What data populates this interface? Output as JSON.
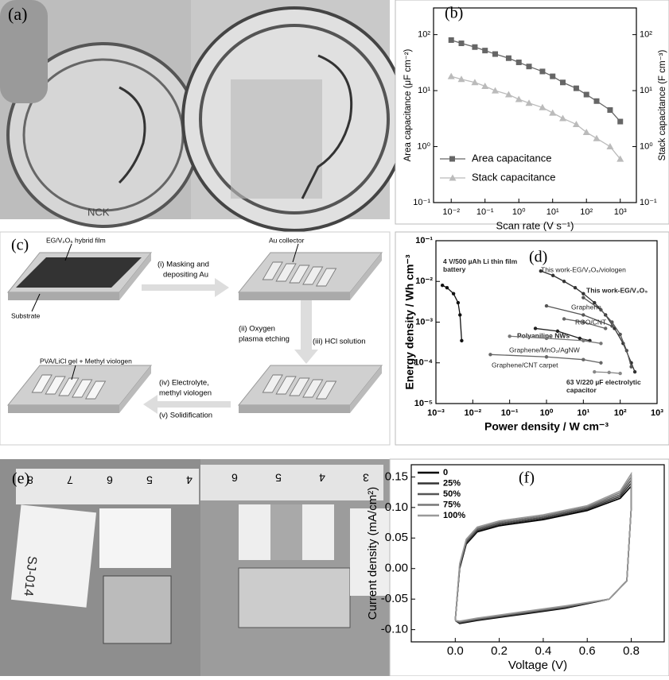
{
  "figure": {
    "panel_a": {
      "label": "(a)",
      "photo_text": "NCK"
    },
    "diagram_c": {
      "label": "(c)",
      "film": "EG/V₂O₅ hybrid film",
      "substrate": "Substrate",
      "collector": "Au collector",
      "step1": [
        "(i) Masking and",
        "depositing Au"
      ],
      "step2": [
        "(ii) Oxygen",
        "plasma etching"
      ],
      "step3": "(iii) HCl solution",
      "gel": "PVA/LiCl gel + Methyl viologen",
      "step4": [
        "(iv) Electrolyte,",
        "methyl viologen"
      ],
      "step5": "(v) Solidification"
    },
    "panel_e": {
      "label": "(e)",
      "ruler_left": [
        "8",
        "7",
        "6",
        "5",
        "4"
      ],
      "ruler_right": [
        "6",
        "5",
        "4",
        "3"
      ],
      "sample": "SJ-014"
    }
  },
  "chart_data": [
    {
      "type": "line",
      "panel_label": "(b)",
      "xlabel": "Scan rate (V s⁻¹)",
      "ylabel": "Area capacitance (μF cm⁻²)",
      "y2label": "Stack capacitance (F cm⁻³)",
      "xscale": "log",
      "yscale": "log",
      "y2scale": "log",
      "x": [
        0.01,
        0.02,
        0.05,
        0.1,
        0.2,
        0.5,
        1,
        2,
        5,
        10,
        20,
        50,
        100,
        200,
        500,
        1000
      ],
      "series": [
        {
          "name": "Area capacitance",
          "color": "#666666",
          "marker": "square",
          "values": [
            80,
            70,
            60,
            52,
            45,
            38,
            32,
            27,
            22,
            18,
            14,
            11,
            8.5,
            6.5,
            4.5,
            2.8
          ]
        },
        {
          "name": "Stack capacitance",
          "color": "#bbbbbb",
          "marker": "triangle",
          "axis": "y2",
          "values": [
            18,
            16,
            14,
            12,
            10,
            8.5,
            7,
            6,
            5,
            4,
            3.2,
            2.5,
            1.8,
            1.4,
            1,
            0.6
          ]
        }
      ],
      "xlim": [
        0.003,
        3000
      ],
      "xticks": [
        {
          "value": 0.01,
          "label": "10⁻²"
        },
        {
          "value": 0.1,
          "label": "10⁻¹"
        },
        {
          "value": 1,
          "label": "10⁰"
        },
        {
          "value": 10,
          "label": "10¹"
        },
        {
          "value": 100,
          "label": "10²"
        },
        {
          "value": 1000,
          "label": "10³"
        }
      ],
      "ylim": [
        0.1,
        300
      ],
      "yticks": [
        {
          "value": 0.1,
          "label": "10⁻¹"
        },
        {
          "value": 1,
          "label": "10⁰"
        },
        {
          "value": 10,
          "label": "10¹"
        },
        {
          "value": 100,
          "label": "10²"
        }
      ],
      "y2lim": [
        0.1,
        300
      ],
      "y2ticks": [
        {
          "value": 0.1,
          "label": "10⁻¹"
        },
        {
          "value": 1,
          "label": "10⁰"
        },
        {
          "value": 10,
          "label": "10¹"
        },
        {
          "value": 100,
          "label": "10²"
        }
      ],
      "legend": "lower left"
    },
    {
      "type": "line",
      "panel_label": "(d)",
      "xlabel": "Power density / W cm⁻³",
      "ylabel": "Energy density / Wh cm⁻³",
      "xscale": "log",
      "yscale": "log",
      "series": [
        {
          "name": "4 V/500 µAh Li thin film battery",
          "color": "#111111",
          "x": [
            0.0015,
            0.002,
            0.003,
            0.004,
            0.0045,
            0.005
          ],
          "values": [
            0.008,
            0.007,
            0.005,
            0.003,
            0.0015,
            0.00035
          ]
        },
        {
          "name": "This work-EG/V₂O₅/viologen",
          "color": "#333333",
          "x": [
            0.7,
            1.5,
            3,
            6,
            10,
            20,
            40,
            70,
            120,
            200,
            250
          ],
          "values": [
            0.018,
            0.014,
            0.01,
            0.007,
            0.005,
            0.003,
            0.0015,
            0.0007,
            0.0003,
            0.0001,
            6e-05
          ]
        },
        {
          "name": "This work-EG/V₂O₅",
          "color": "#555555",
          "x": [
            10,
            30,
            60,
            100,
            150,
            200
          ],
          "values": [
            0.004,
            0.002,
            0.001,
            0.0005,
            0.0002,
            8e-05
          ]
        },
        {
          "name": "Graphene",
          "color": "#555555",
          "x": [
            1,
            10,
            60
          ],
          "values": [
            0.0025,
            0.0015,
            0.0008
          ]
        },
        {
          "name": "RGO/CNT",
          "color": "#666666",
          "x": [
            3,
            10,
            40
          ],
          "values": [
            0.0012,
            0.001,
            0.0007
          ]
        },
        {
          "name": "Polyaniline NWs",
          "color": "#222222",
          "x": [
            0.5,
            2,
            8,
            15
          ],
          "values": [
            0.0007,
            0.0006,
            0.0004,
            0.00035
          ]
        },
        {
          "name": "Graphene/MnO₂/AgNW",
          "color": "#777777",
          "x": [
            0.1,
            1,
            10,
            30
          ],
          "values": [
            0.00045,
            0.0004,
            0.00035,
            0.0003
          ]
        },
        {
          "name": "Graphene/CNT carpet",
          "color": "#666666",
          "x": [
            0.03,
            1,
            10,
            30
          ],
          "values": [
            0.00016,
            0.00014,
            0.00012,
            0.0001
          ]
        },
        {
          "name": "63 V/220 µF electrolytic capacitor",
          "color": "#888888",
          "x": [
            20,
            50,
            100
          ],
          "values": [
            6e-05,
            5.8e-05,
            5.5e-05
          ]
        }
      ],
      "xlim": [
        0.001,
        1000
      ],
      "xticks": [
        {
          "value": 0.001,
          "label": "10⁻³"
        },
        {
          "value": 0.01,
          "label": "10⁻²"
        },
        {
          "value": 0.1,
          "label": "10⁻¹"
        },
        {
          "value": 1,
          "label": "10⁰"
        },
        {
          "value": 10,
          "label": "10¹"
        },
        {
          "value": 100,
          "label": "10²"
        },
        {
          "value": 1000,
          "label": "10³"
        }
      ],
      "ylim": [
        1e-05,
        0.1
      ],
      "yticks": [
        {
          "value": 1e-05,
          "label": "10⁻⁵"
        },
        {
          "value": 0.0001,
          "label": "10⁻⁴"
        },
        {
          "value": 0.001,
          "label": "10⁻³"
        },
        {
          "value": 0.01,
          "label": "10⁻²"
        },
        {
          "value": 0.1,
          "label": "10⁻¹"
        }
      ]
    },
    {
      "type": "line",
      "panel_label": "(f)",
      "xlabel": "Voltage (V)",
      "ylabel": "Current density (mA/cm²)",
      "series": [
        {
          "name": "0",
          "color": "#000000",
          "x": [
            0,
            0.02,
            0.05,
            0.1,
            0.2,
            0.4,
            0.6,
            0.75,
            0.8,
            0.8,
            0.78,
            0.7,
            0.5,
            0.3,
            0.1,
            0.02,
            0
          ],
          "values": [
            -0.085,
            0,
            0.04,
            0.06,
            0.07,
            0.08,
            0.095,
            0.115,
            0.135,
            0.1,
            -0.02,
            -0.05,
            -0.065,
            -0.075,
            -0.085,
            -0.09,
            -0.085
          ]
        },
        {
          "name": "25%",
          "color": "#333333",
          "x": [
            0,
            0.02,
            0.05,
            0.1,
            0.2,
            0.4,
            0.6,
            0.75,
            0.8,
            0.8,
            0.78,
            0.7,
            0.5,
            0.3,
            0.1,
            0.02,
            0
          ],
          "values": [
            -0.085,
            0.002,
            0.042,
            0.062,
            0.072,
            0.082,
            0.097,
            0.118,
            0.14,
            0.1,
            -0.02,
            -0.05,
            -0.064,
            -0.074,
            -0.084,
            -0.089,
            -0.085
          ]
        },
        {
          "name": "50%",
          "color": "#555555",
          "x": [
            0,
            0.02,
            0.05,
            0.1,
            0.2,
            0.4,
            0.6,
            0.75,
            0.8,
            0.8,
            0.78,
            0.7,
            0.5,
            0.3,
            0.1,
            0.02,
            0
          ],
          "values": [
            -0.085,
            0.004,
            0.044,
            0.064,
            0.074,
            0.084,
            0.099,
            0.121,
            0.145,
            0.1,
            -0.02,
            -0.05,
            -0.063,
            -0.073,
            -0.083,
            -0.088,
            -0.085
          ]
        },
        {
          "name": "75%",
          "color": "#777777",
          "x": [
            0,
            0.02,
            0.05,
            0.1,
            0.2,
            0.4,
            0.6,
            0.75,
            0.8,
            0.8,
            0.78,
            0.7,
            0.5,
            0.3,
            0.1,
            0.02,
            0
          ],
          "values": [
            -0.085,
            0.006,
            0.046,
            0.066,
            0.076,
            0.086,
            0.101,
            0.124,
            0.15,
            0.1,
            -0.02,
            -0.05,
            -0.062,
            -0.072,
            -0.082,
            -0.087,
            -0.085
          ]
        },
        {
          "name": "100%",
          "color": "#999999",
          "x": [
            0,
            0.02,
            0.05,
            0.1,
            0.2,
            0.4,
            0.6,
            0.75,
            0.8,
            0.8,
            0.78,
            0.7,
            0.5,
            0.3,
            0.1,
            0.02,
            0
          ],
          "values": [
            -0.085,
            0.008,
            0.048,
            0.068,
            0.078,
            0.088,
            0.103,
            0.127,
            0.155,
            0.1,
            -0.02,
            -0.05,
            -0.061,
            -0.071,
            -0.081,
            -0.086,
            -0.085
          ]
        }
      ],
      "xlim": [
        -0.2,
        0.95
      ],
      "xticks": [
        {
          "value": 0,
          "label": "0.0"
        },
        0.2,
        0.4,
        0.6,
        0.8
      ],
      "ylim": [
        -0.12,
        0.17
      ],
      "yticks": [
        {
          "value": -0.1,
          "label": "-0.10"
        },
        -0.05,
        {
          "value": 0,
          "label": "0.00"
        },
        0.05,
        {
          "value": 0.1,
          "label": "0.10"
        },
        0.15
      ],
      "legend": "upper left"
    }
  ]
}
